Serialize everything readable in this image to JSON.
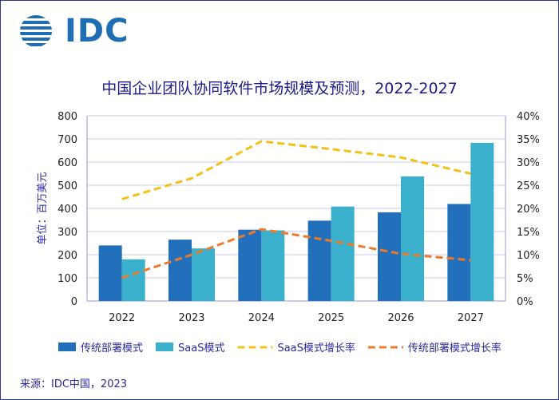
{
  "logo": {
    "text": "IDC",
    "icon": "globe-stripes-icon",
    "color": "#1f6db3"
  },
  "source": "来源：IDC中国，2023",
  "chart_data": {
    "type": "bar",
    "title": "中国企业团队协同软件市场规模及预测，2022-2027",
    "ylabel": "单位：百万美元",
    "categories": [
      "2022",
      "2023",
      "2024",
      "2025",
      "2026",
      "2027"
    ],
    "ylim": [
      0,
      800
    ],
    "y_ticks": [
      "0",
      "100",
      "200",
      "300",
      "400",
      "500",
      "600",
      "700",
      "800"
    ],
    "y2lim": [
      0,
      40
    ],
    "y2_ticks": [
      "0%",
      "5%",
      "10%",
      "15%",
      "20%",
      "25%",
      "30%",
      "35%",
      "40%"
    ],
    "series": [
      {
        "name": "传统部署模式",
        "kind": "bar",
        "color": "#2270bb",
        "values": [
          240,
          265,
          308,
          347,
          383,
          419
        ]
      },
      {
        "name": "SaaS模式",
        "kind": "bar",
        "color": "#3ab0cc",
        "values": [
          180,
          227,
          305,
          408,
          538,
          683
        ]
      },
      {
        "name": "SaaS模式增长率",
        "kind": "line",
        "axis": "right",
        "color": "#f2c21a",
        "values": [
          22.0,
          26.5,
          34.5,
          32.8,
          31.0,
          27.5
        ]
      },
      {
        "name": "传统部署模式增长率",
        "kind": "line",
        "axis": "right",
        "color": "#ee7a2a",
        "values": [
          5.0,
          10.0,
          15.5,
          13.0,
          10.2,
          8.8
        ]
      }
    ],
    "legend_position": "bottom"
  }
}
